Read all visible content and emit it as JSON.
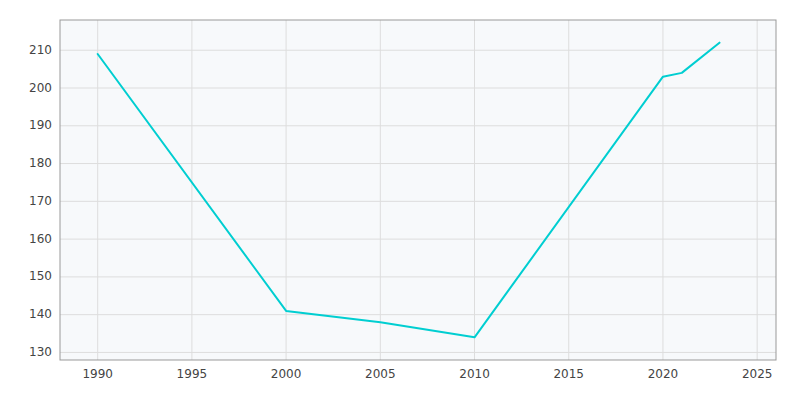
{
  "chart_data": {
    "type": "line",
    "x": [
      1990,
      2000,
      2005,
      2010,
      2020,
      2021,
      2023
    ],
    "values": [
      209,
      141,
      138,
      134,
      203,
      204,
      212
    ],
    "color": "#00CED1",
    "xlim": [
      1988,
      2026
    ],
    "ylim": [
      128,
      218
    ],
    "xticks": [
      1990,
      1995,
      2000,
      2005,
      2010,
      2015,
      2020,
      2025
    ],
    "yticks": [
      130,
      140,
      150,
      160,
      170,
      180,
      190,
      200,
      210
    ],
    "grid": true
  }
}
